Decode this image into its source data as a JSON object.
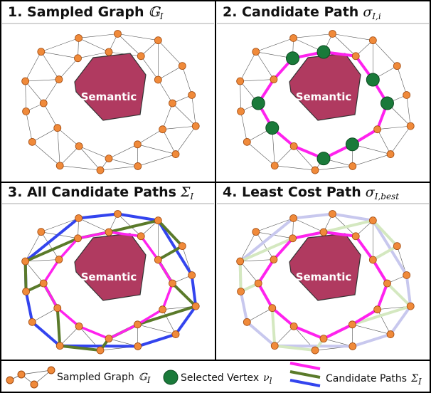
{
  "panels": [
    {
      "title": "1. Sampled Graph",
      "symbol": "𝔾",
      "subscript": "I",
      "label": "Semantic"
    },
    {
      "title": "2. Candidate Path",
      "symbol": "σ",
      "subscript": "I,i",
      "label": "Semantic"
    },
    {
      "title": "3. All Candidate Paths",
      "symbol": "Σ",
      "subscript": "I",
      "label": "Semantic"
    },
    {
      "title": "4. Least Cost Path",
      "symbol": "σ",
      "subscript": "I,best",
      "label": "Semantic"
    }
  ],
  "legend": [
    {
      "text": "Sampled Graph",
      "symbol": "𝔾",
      "subscript": "I"
    },
    {
      "text": "Selected Vertex",
      "symbol": "ν",
      "subscript": "l"
    },
    {
      "text": "Candidate Paths",
      "symbol": "Σ",
      "subscript": "I"
    }
  ]
}
